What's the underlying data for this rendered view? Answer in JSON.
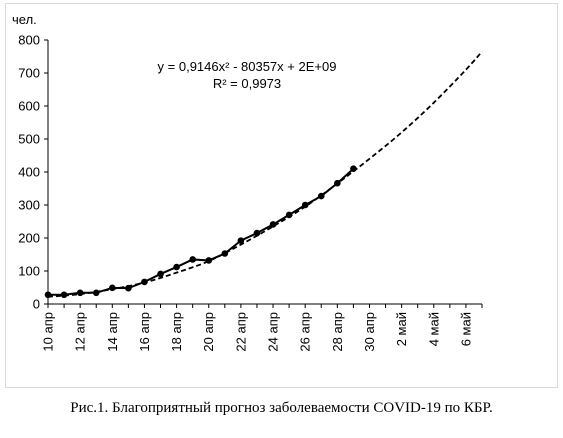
{
  "chart_data": {
    "type": "line",
    "ylabel": "чел.",
    "ylim": [
      0,
      800
    ],
    "yticks": [
      0,
      100,
      200,
      300,
      400,
      500,
      600,
      700,
      800
    ],
    "x_start": "10 апр",
    "x_end": "7 май",
    "xtick_labels": [
      "10 апр",
      "12 апр",
      "14 апр",
      "16 апр",
      "18 апр",
      "20 апр",
      "22 апр",
      "24 апр",
      "26 апр",
      "28 апр",
      "30 апр",
      "2 май",
      "4 май",
      "6 май"
    ],
    "series": [
      {
        "kind": "observed",
        "dates": [
          "10 апр",
          "11 апр",
          "12 апр",
          "13 апр",
          "14 апр",
          "15 апр",
          "16 апр",
          "17 апр",
          "18 апр",
          "19 апр",
          "20 апр",
          "21 апр",
          "22 апр",
          "23 апр",
          "24 апр",
          "25 апр",
          "26 апр",
          "27 апр",
          "28 апр",
          "29 апр"
        ],
        "values": [
          28,
          28,
          34,
          34,
          49,
          48,
          67,
          91,
          112,
          135,
          132,
          153,
          192,
          215,
          241,
          270,
          300,
          327,
          366,
          410
        ]
      },
      {
        "kind": "trend",
        "style": "dashed",
        "dates": [
          "10 апр",
          "12 апр",
          "14 апр",
          "16 апр",
          "18 апр",
          "20 апр",
          "22 апр",
          "24 апр",
          "26 апр",
          "28 апр",
          "30 апр",
          "2 май",
          "4 май",
          "6 май",
          "7 май"
        ],
        "values": [
          22,
          30,
          45,
          65,
          95,
          130,
          180,
          235,
          295,
          365,
          440,
          520,
          610,
          710,
          765
        ]
      }
    ],
    "annotations": [
      "y = 0,9146x² - 80357x + 2E+09",
      "R² = 0,9973"
    ]
  },
  "caption": "Рис.1. Благоприятный прогноз заболеваемости COVID-19 по КБР."
}
